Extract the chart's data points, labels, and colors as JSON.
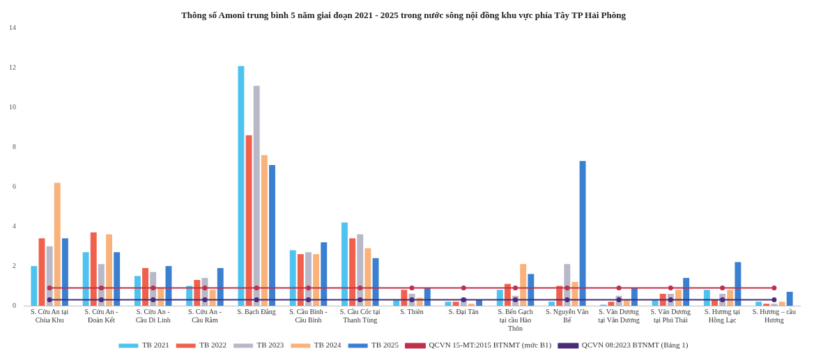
{
  "chart_data": {
    "type": "bar",
    "title": "Thông số Amoni trung bình 5 năm giai đoạn 2021 - 2025 trong nước sông nội đồng khu vực phía Tây TP Hải Phòng",
    "categories": [
      "S. Cửu An tại Chùa Khu",
      "S. Cửu An - Đoàn Kết",
      "S. Cửu An - Cầu Di Linh",
      "S. Cửu An - Cầu Rằm",
      "S. Bạch Đằng",
      "S. Cầu Bình - Cầu Bình",
      "S. Cầu Cốc tại Thanh Tùng",
      "S. Thiên",
      "S. Đại Tân",
      "S. Bến Gạch tại cầu Hào Thôn",
      "S. Nguyễn Văn Bế",
      "S. Văn Dương tại Văn Dương",
      "S. Văn Dương tại Phú Thái",
      "S. Hương tại Hồng Lạc",
      "S. Hương – cầu Hương"
    ],
    "series": [
      {
        "name": "TB 2021",
        "color": "#4fc3f0",
        "values": [
          2.0,
          2.7,
          1.5,
          1.0,
          12.1,
          2.8,
          4.2,
          0.3,
          0.2,
          0.8,
          0.2,
          0.05,
          0.3,
          0.8,
          0.2
        ]
      },
      {
        "name": "TB 2022",
        "color": "#f0604d",
        "values": [
          3.4,
          3.7,
          1.9,
          1.3,
          8.6,
          2.6,
          3.4,
          0.8,
          0.2,
          1.1,
          1.0,
          0.2,
          0.6,
          0.3,
          0.1
        ]
      },
      {
        "name": "TB 2023",
        "color": "#b8b8c8",
        "values": [
          3.0,
          2.1,
          1.7,
          1.4,
          11.1,
          2.7,
          3.6,
          0.6,
          0.4,
          0.5,
          2.1,
          0.5,
          0.6,
          0.6,
          0.1
        ]
      },
      {
        "name": "TB 2024",
        "color": "#f9b27a",
        "values": [
          6.2,
          3.6,
          0.9,
          0.8,
          7.6,
          2.6,
          2.9,
          0.4,
          0.1,
          2.1,
          1.2,
          0.3,
          0.8,
          0.8,
          0.2
        ]
      },
      {
        "name": "TB 2025",
        "color": "#3a7fd0",
        "values": [
          3.4,
          2.7,
          2.0,
          1.9,
          7.1,
          3.2,
          2.4,
          0.9,
          0.3,
          1.6,
          7.3,
          0.9,
          1.4,
          2.2,
          0.7
        ]
      },
      {
        "name": "QCVN 15-MT:2015 BTNMT (mức B1)",
        "type": "line",
        "color": "#c0304a",
        "marker": "circle",
        "values": [
          0.9,
          0.9,
          0.9,
          0.9,
          0.9,
          0.9,
          0.9,
          0.9,
          0.9,
          0.9,
          0.9,
          0.9,
          0.9,
          0.9,
          0.9
        ]
      },
      {
        "name": "QCVN 08:2023 BTNMT (Bảng 1)",
        "type": "line",
        "color": "#4b2a7a",
        "marker": "circle",
        "values": [
          0.3,
          0.3,
          0.3,
          0.3,
          0.3,
          0.3,
          0.3,
          0.3,
          0.3,
          0.3,
          0.3,
          0.3,
          0.3,
          0.3,
          0.3
        ]
      }
    ],
    "ylim": [
      0,
      14
    ],
    "yticks": [
      0,
      2,
      4,
      6,
      8,
      10,
      12,
      14
    ],
    "grid": false,
    "legend": "bottom"
  }
}
